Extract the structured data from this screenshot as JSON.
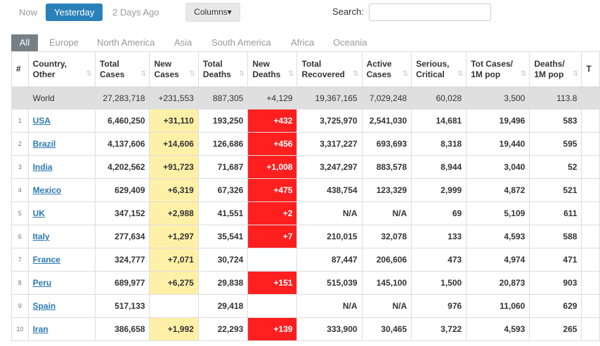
{
  "time_tabs": [
    {
      "label": "Now",
      "active": false
    },
    {
      "label": "Yesterday",
      "active": true
    },
    {
      "label": "2 Days Ago",
      "active": false
    }
  ],
  "columns_button": "Columns",
  "search": {
    "label": "Search:",
    "value": ""
  },
  "regions": [
    "All",
    "Europe",
    "North America",
    "Asia",
    "South America",
    "Africa",
    "Oceania"
  ],
  "headers": [
    "#",
    "Country,\nOther",
    "Total\nCases",
    "New\nCases",
    "Total\nDeaths",
    "New\nDeaths",
    "Total\nRecovered",
    "Active\nCases",
    "Serious,\nCritical",
    "Tot Cases/\n1M pop",
    "Deaths/\n1M pop",
    "T"
  ],
  "world": [
    "",
    "World",
    "27,283,718",
    "+231,553",
    "887,305",
    "+4,129",
    "19,367,165",
    "7,029,248",
    "60,028",
    "3,500",
    "113.8",
    ""
  ],
  "rows": [
    [
      "1",
      "USA",
      "6,460,250",
      "+31,110",
      "193,250",
      "+432",
      "3,725,970",
      "2,541,030",
      "14,681",
      "19,496",
      "583"
    ],
    [
      "2",
      "Brazil",
      "4,137,606",
      "+14,606",
      "126,686",
      "+456",
      "3,317,227",
      "693,693",
      "8,318",
      "19,440",
      "595"
    ],
    [
      "3",
      "India",
      "4,202,562",
      "+91,723",
      "71,687",
      "+1,008",
      "3,247,297",
      "883,578",
      "8,944",
      "3,040",
      "52"
    ],
    [
      "4",
      "Mexico",
      "629,409",
      "+6,319",
      "67,326",
      "+475",
      "438,754",
      "123,329",
      "2,999",
      "4,872",
      "521"
    ],
    [
      "5",
      "UK",
      "347,152",
      "+2,988",
      "41,551",
      "+2",
      "N/A",
      "N/A",
      "69",
      "5,109",
      "611"
    ],
    [
      "6",
      "Italy",
      "277,634",
      "+1,297",
      "35,541",
      "+7",
      "210,015",
      "32,078",
      "133",
      "4,593",
      "588"
    ],
    [
      "7",
      "France",
      "324,777",
      "+7,071",
      "30,724",
      "",
      "87,447",
      "206,606",
      "473",
      "4,974",
      "471"
    ],
    [
      "8",
      "Peru",
      "689,977",
      "+6,275",
      "29,838",
      "+151",
      "515,039",
      "145,100",
      "1,500",
      "20,873",
      "903"
    ],
    [
      "9",
      "Spain",
      "517,133",
      "",
      "29,418",
      "",
      "N/A",
      "N/A",
      "976",
      "11,060",
      "629"
    ],
    [
      "10",
      "Iran",
      "386,658",
      "+1,992",
      "22,293",
      "+139",
      "333,900",
      "30,465",
      "3,722",
      "4,593",
      "265"
    ]
  ],
  "colors": {
    "new_cases": "#fff0a8",
    "new_deaths": "#ff1f1f",
    "active_tab": "#2a80b9",
    "link": "#2a78b4"
  }
}
